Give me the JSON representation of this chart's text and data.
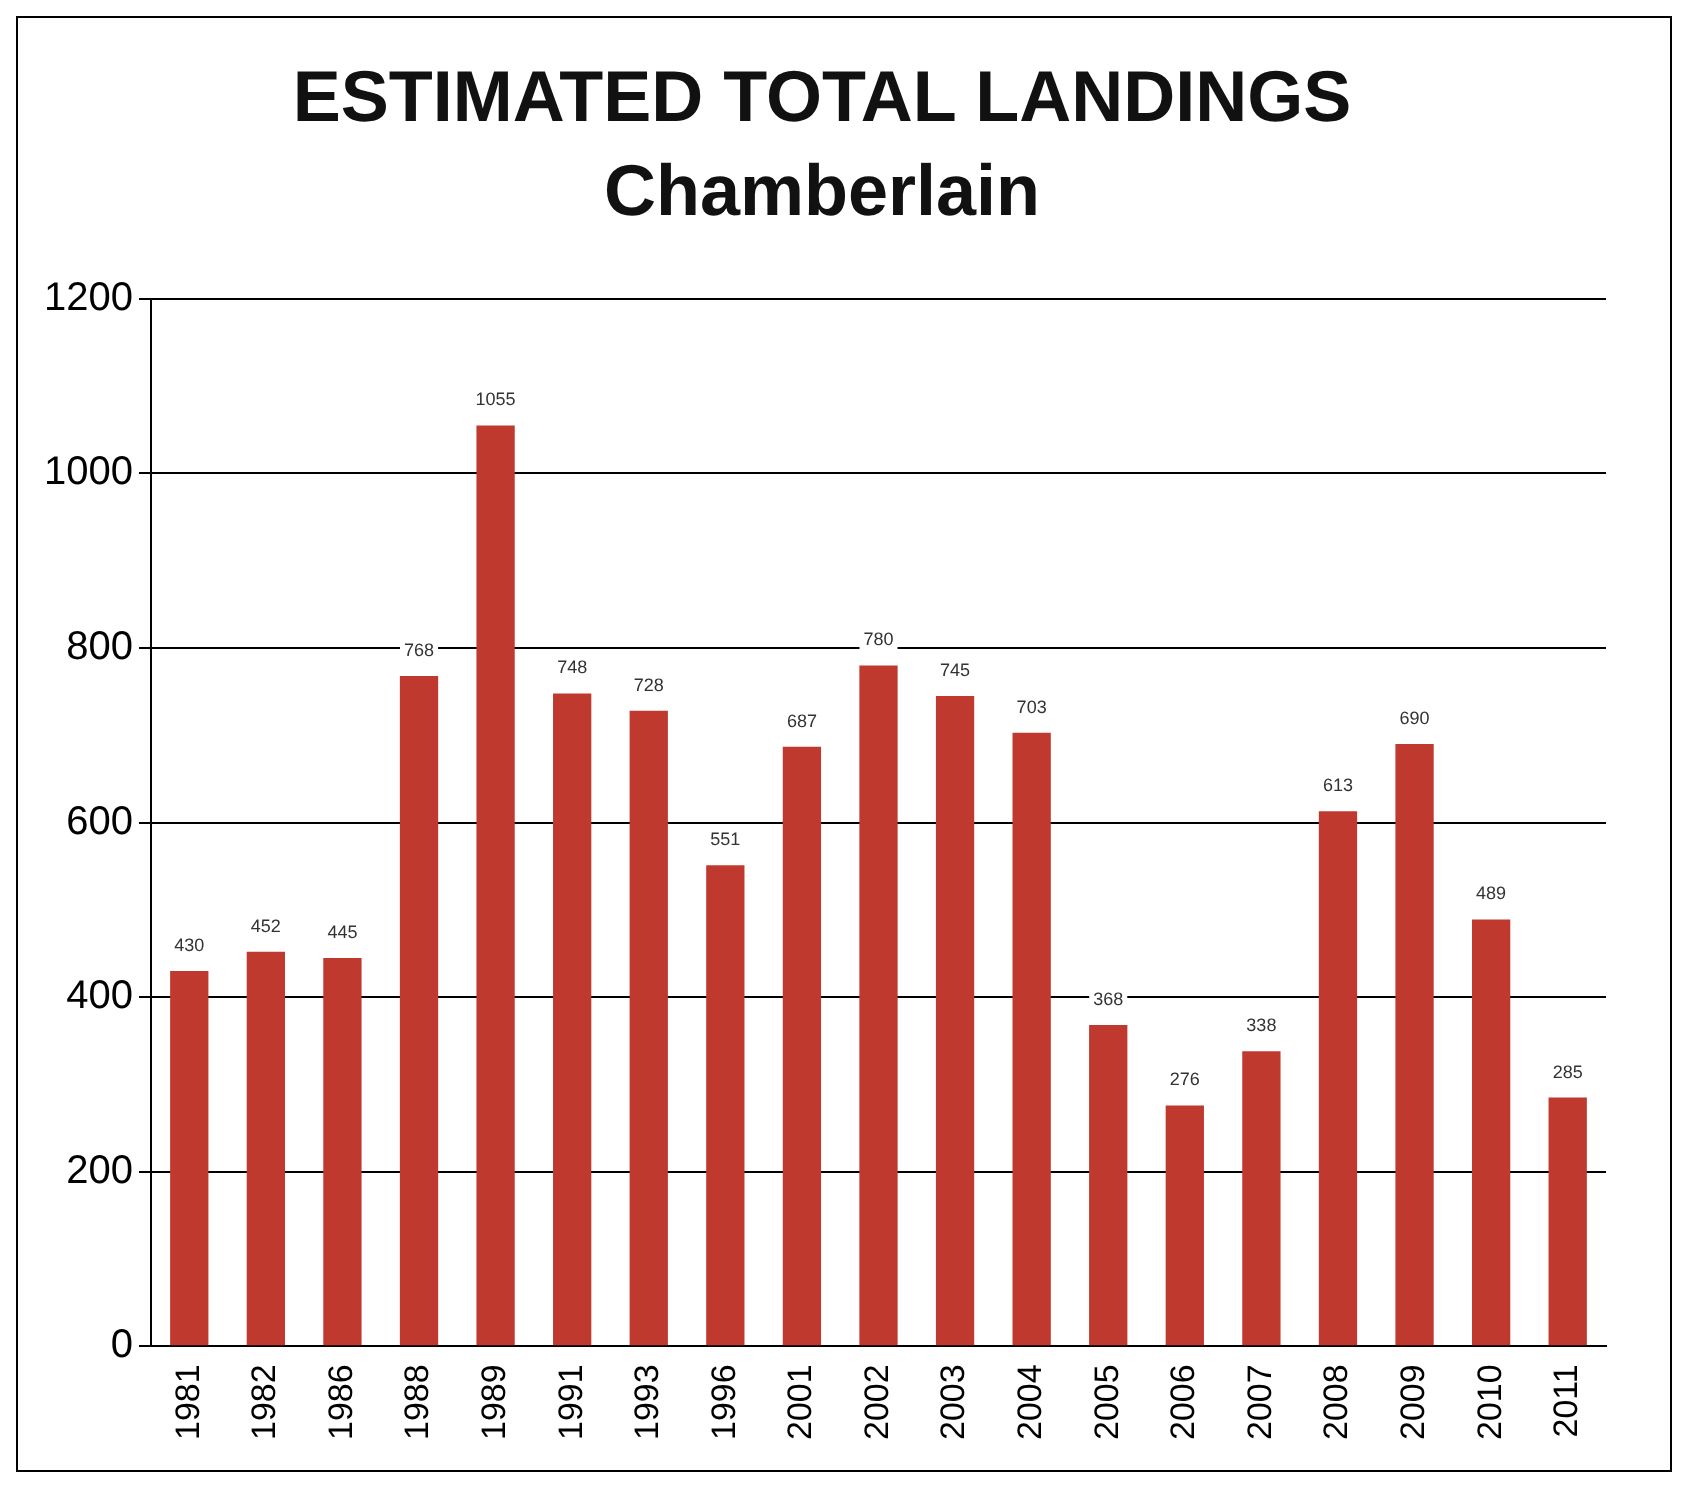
{
  "chart_data": {
    "type": "bar",
    "title": "ESTIMATED TOTAL LANDINGS",
    "subtitle": "Chamberlain",
    "categories": [
      "1981",
      "1982",
      "1986",
      "1988",
      "1989",
      "1991",
      "1993",
      "1996",
      "2001",
      "2002",
      "2003",
      "2004",
      "2005",
      "2006",
      "2007",
      "2008",
      "2009",
      "2010",
      "2011"
    ],
    "values": [
      430,
      452,
      445,
      768,
      1055,
      748,
      728,
      551,
      687,
      780,
      745,
      703,
      368,
      276,
      338,
      613,
      690,
      489,
      285
    ],
    "color": "#c0392f",
    "ylim": [
      0,
      1200
    ],
    "yticks": [
      0,
      200,
      400,
      600,
      800,
      1000,
      1200
    ],
    "grid": "y",
    "data_labels": true,
    "legend": false
  }
}
